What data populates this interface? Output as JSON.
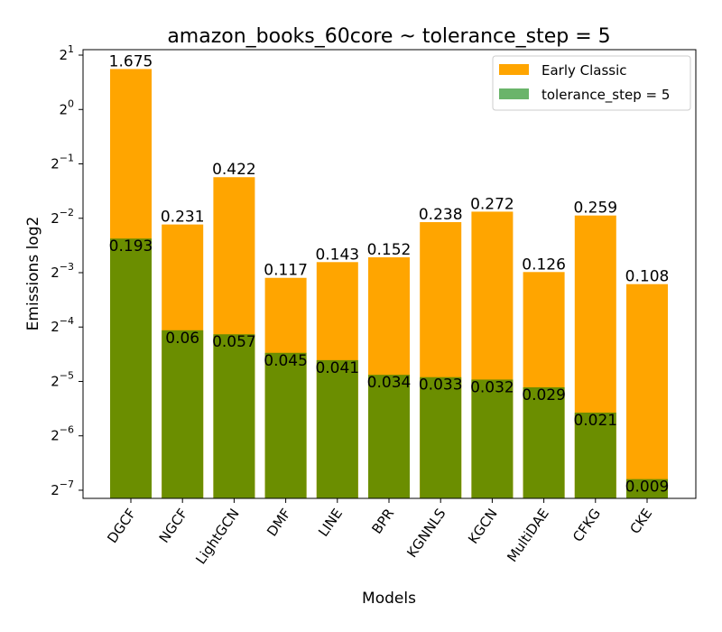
{
  "chart_data": {
    "type": "bar",
    "title": "amazon_books_60core ~ tolerance_step = 5",
    "xlabel": "Models",
    "ylabel": "Emissions log2",
    "yscale": "log2",
    "ylim_exponent": [
      -7.15,
      1.1
    ],
    "yticks": [
      {
        "exp": 1,
        "base": "2",
        "sup": "1"
      },
      {
        "exp": 0,
        "base": "2",
        "sup": "0"
      },
      {
        "exp": -1,
        "base": "2",
        "sup": "−1"
      },
      {
        "exp": -2,
        "base": "2",
        "sup": "−2"
      },
      {
        "exp": -3,
        "base": "2",
        "sup": "−3"
      },
      {
        "exp": -4,
        "base": "2",
        "sup": "−4"
      },
      {
        "exp": -5,
        "base": "2",
        "sup": "−5"
      },
      {
        "exp": -6,
        "base": "2",
        "sup": "−6"
      },
      {
        "exp": -7,
        "base": "2",
        "sup": "−7"
      }
    ],
    "categories": [
      "DGCF",
      "NGCF",
      "LightGCN",
      "DMF",
      "LINE",
      "BPR",
      "KGNNLS",
      "KGCN",
      "MultiDAE",
      "CFKG",
      "CKE"
    ],
    "series": [
      {
        "name": "Early Classic",
        "color": "#ffa500",
        "values": [
          1.675,
          0.231,
          0.422,
          0.117,
          0.143,
          0.152,
          0.238,
          0.272,
          0.126,
          0.259,
          0.108
        ],
        "labels": [
          "1.675",
          "0.231",
          "0.422",
          "0.117",
          "0.143",
          "0.152",
          "0.238",
          "0.272",
          "0.126",
          "0.259",
          "0.108"
        ]
      },
      {
        "name": "tolerance_step = 5",
        "color": "#6b8e00",
        "legend_color": "#6ab46a",
        "values": [
          0.193,
          0.06,
          0.057,
          0.045,
          0.041,
          0.034,
          0.033,
          0.032,
          0.029,
          0.021,
          0.009
        ],
        "labels": [
          "0.193",
          "0.06",
          "0.057",
          "0.045",
          "0.041",
          "0.034",
          "0.033",
          "0.032",
          "0.029",
          "0.021",
          "0.009"
        ]
      }
    ],
    "legend_position": "top-right"
  }
}
